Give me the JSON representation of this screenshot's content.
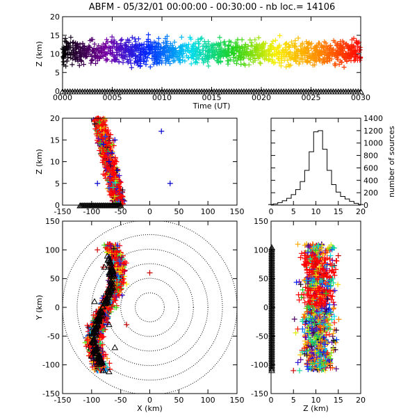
{
  "chart_data": [
    {
      "type": "scatter",
      "panel": "time-height",
      "title": "ABFM - 05/32/01 00:00:00 - 00:30:00 - nb loc.=  14106",
      "xlabel": "Time (UT)",
      "ylabel": "Z (km)",
      "x_ticks": [
        "0000",
        "0005",
        "0010",
        "0015",
        "0020",
        "0025",
        "0030"
      ],
      "y_ticks": [
        "0",
        "5",
        "10",
        "15",
        "20"
      ],
      "xlim": [
        0,
        30
      ],
      "ylim": [
        0,
        20
      ],
      "color_mapping": "rainbow by time (black→purple→blue→cyan→green→yellow→orange→red)",
      "series": [
        {
          "marker": "+",
          "points": [
            [
              0.5,
              10
            ],
            [
              3,
              11
            ],
            [
              6,
              9
            ],
            [
              9,
              12
            ],
            [
              12,
              10
            ],
            [
              15,
              11
            ],
            [
              18,
              9
            ],
            [
              21,
              12
            ],
            [
              24,
              10
            ],
            [
              27,
              11
            ],
            [
              29.5,
              10
            ]
          ]
        },
        {
          "marker": "triangle",
          "points": [
            [
              0,
              0
            ],
            [
              5,
              0
            ],
            [
              10,
              0
            ],
            [
              15,
              0
            ],
            [
              20,
              0
            ],
            [
              25,
              0
            ],
            [
              30,
              0
            ]
          ]
        }
      ]
    },
    {
      "type": "scatter",
      "panel": "x-z",
      "xlabel": "",
      "ylabel": "Z (km)",
      "x_ticks": [
        "-150",
        "-100",
        "-50",
        "0",
        "50",
        "100",
        "150"
      ],
      "y_ticks": [
        "0",
        "5",
        "10",
        "15",
        "20"
      ],
      "xlim": [
        -150,
        150
      ],
      "ylim": [
        0,
        20
      ],
      "series": [
        {
          "marker": "+",
          "points": [
            [
              -70,
              10
            ],
            [
              -65,
              12
            ],
            [
              -55,
              8
            ],
            [
              -80,
              14
            ],
            [
              -90,
              5
            ],
            [
              -60,
              15
            ],
            [
              20,
              17
            ],
            [
              35,
              5
            ]
          ]
        }
      ]
    },
    {
      "type": "line",
      "panel": "histogram",
      "xlabel": "",
      "ylabel": "number of sources",
      "x_ticks": [
        "0",
        "5",
        "10",
        "15",
        "20"
      ],
      "y_ticks": [
        "0",
        "200",
        "400",
        "600",
        "800",
        "1000",
        "1200",
        "1400"
      ],
      "xlim": [
        0,
        20
      ],
      "ylim": [
        0,
        1400
      ],
      "x": [
        0,
        1,
        2,
        3,
        4,
        5,
        6,
        7,
        8,
        9,
        10,
        11,
        12,
        13,
        14,
        15,
        16,
        17,
        18,
        19,
        20
      ],
      "values": [
        10,
        20,
        40,
        70,
        110,
        170,
        250,
        380,
        560,
        860,
        1180,
        1200,
        900,
        560,
        330,
        210,
        140,
        100,
        60,
        30,
        10
      ]
    },
    {
      "type": "scatter",
      "panel": "x-y",
      "xlabel": "X (km)",
      "ylabel": "Y (km)",
      "x_ticks": [
        "-150",
        "-100",
        "-50",
        "0",
        "50",
        "100",
        "150"
      ],
      "y_ticks": [
        "-150",
        "-100",
        "-50",
        "0",
        "50",
        "100",
        "150"
      ],
      "xlim": [
        -150,
        150
      ],
      "ylim": [
        -150,
        150
      ],
      "range_rings_km": [
        25,
        50,
        75,
        100,
        125,
        150
      ],
      "series": [
        {
          "marker": "+",
          "points": [
            [
              -80,
              70
            ],
            [
              -60,
              30
            ],
            [
              -75,
              -20
            ],
            [
              -100,
              -80
            ],
            [
              -40,
              -30
            ],
            [
              0,
              60
            ],
            [
              -90,
              100
            ]
          ]
        },
        {
          "marker": "triangle",
          "points": [
            [
              -78,
              70
            ],
            [
              -95,
              10
            ],
            [
              -70,
              -30
            ],
            [
              -100,
              -85
            ],
            [
              -80,
              -110
            ],
            [
              -70,
              -112
            ],
            [
              -60,
              -70
            ]
          ]
        }
      ]
    },
    {
      "type": "scatter",
      "panel": "z-y",
      "xlabel": "Z (km)",
      "ylabel": "",
      "x_ticks": [
        "0",
        "5",
        "10",
        "15",
        "20"
      ],
      "y_ticks": [
        "-150",
        "-100",
        "-50",
        "0",
        "50",
        "100",
        "150"
      ],
      "xlim": [
        0,
        20
      ],
      "ylim": [
        -150,
        150
      ],
      "series": [
        {
          "marker": "+",
          "points": [
            [
              10,
              75
            ],
            [
              12,
              30
            ],
            [
              9,
              -10
            ],
            [
              11,
              -40
            ],
            [
              8,
              -70
            ],
            [
              15,
              90
            ],
            [
              5,
              -110
            ]
          ]
        },
        {
          "marker": "triangle",
          "points": [
            [
              0,
              90
            ],
            [
              0,
              50
            ],
            [
              0,
              0
            ],
            [
              0,
              -50
            ],
            [
              0,
              -100
            ]
          ]
        }
      ]
    }
  ]
}
